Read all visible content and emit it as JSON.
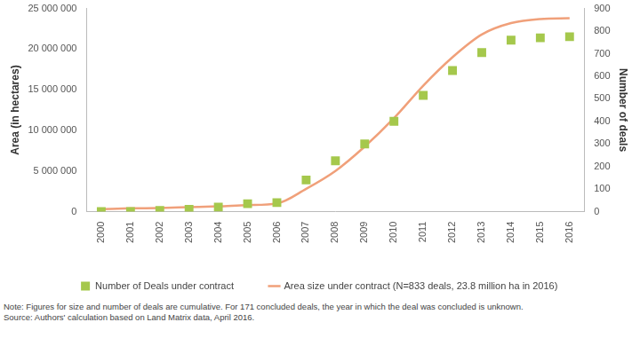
{
  "chart_data": {
    "type": "line",
    "categories": [
      "2000",
      "2001",
      "2002",
      "2003",
      "2004",
      "2005",
      "2006",
      "2007",
      "2008",
      "2009",
      "2010",
      "2011",
      "2012",
      "2013",
      "2014",
      "2015",
      "2016"
    ],
    "series": [
      {
        "name": "Area size under contract (N=833 deals, 23.8 million ha in 2016)",
        "type": "line",
        "line_style": "solid",
        "color": "#f0a07a",
        "axis": "y",
        "values": [
          300000,
          400000,
          450000,
          550000,
          650000,
          800000,
          1000000,
          2800000,
          5000000,
          8000000,
          11500000,
          15500000,
          19000000,
          21800000,
          23200000,
          23700000,
          23800000
        ]
      },
      {
        "name": "Number of Deals under contract",
        "type": "scatter",
        "marker": "square",
        "color": "#a5c84c",
        "axis": "y2",
        "values": [
          0,
          0,
          5,
          10,
          20,
          35,
          40,
          140,
          225,
          300,
          400,
          515,
          625,
          705,
          760,
          770,
          775
        ]
      }
    ],
    "y_label": "Area (in hectares)",
    "y2_label": "Number of deals",
    "ylim": [
      0,
      25000000
    ],
    "yticks": [
      0,
      {
        "value": 5000000,
        "label": "5 000 000"
      },
      {
        "value": 10000000,
        "label": "10 000 000"
      },
      {
        "value": 15000000,
        "label": "15 000 000"
      },
      {
        "value": 20000000,
        "label": "20 000 000"
      },
      {
        "value": 25000000,
        "label": "25 000 000"
      }
    ],
    "y2lim": [
      0,
      900
    ],
    "y2ticks": [
      0,
      100,
      200,
      300,
      400,
      500,
      600,
      700,
      800,
      900
    ],
    "grid": false,
    "legend": "bottom",
    "notes": [
      "Note: Figures for size and number of deals are cumulative. For 171 concluded deals, the year in which the deal was concluded is unknown.",
      "Source: Authors' calculation based on Land Matrix data, April 2016."
    ]
  }
}
